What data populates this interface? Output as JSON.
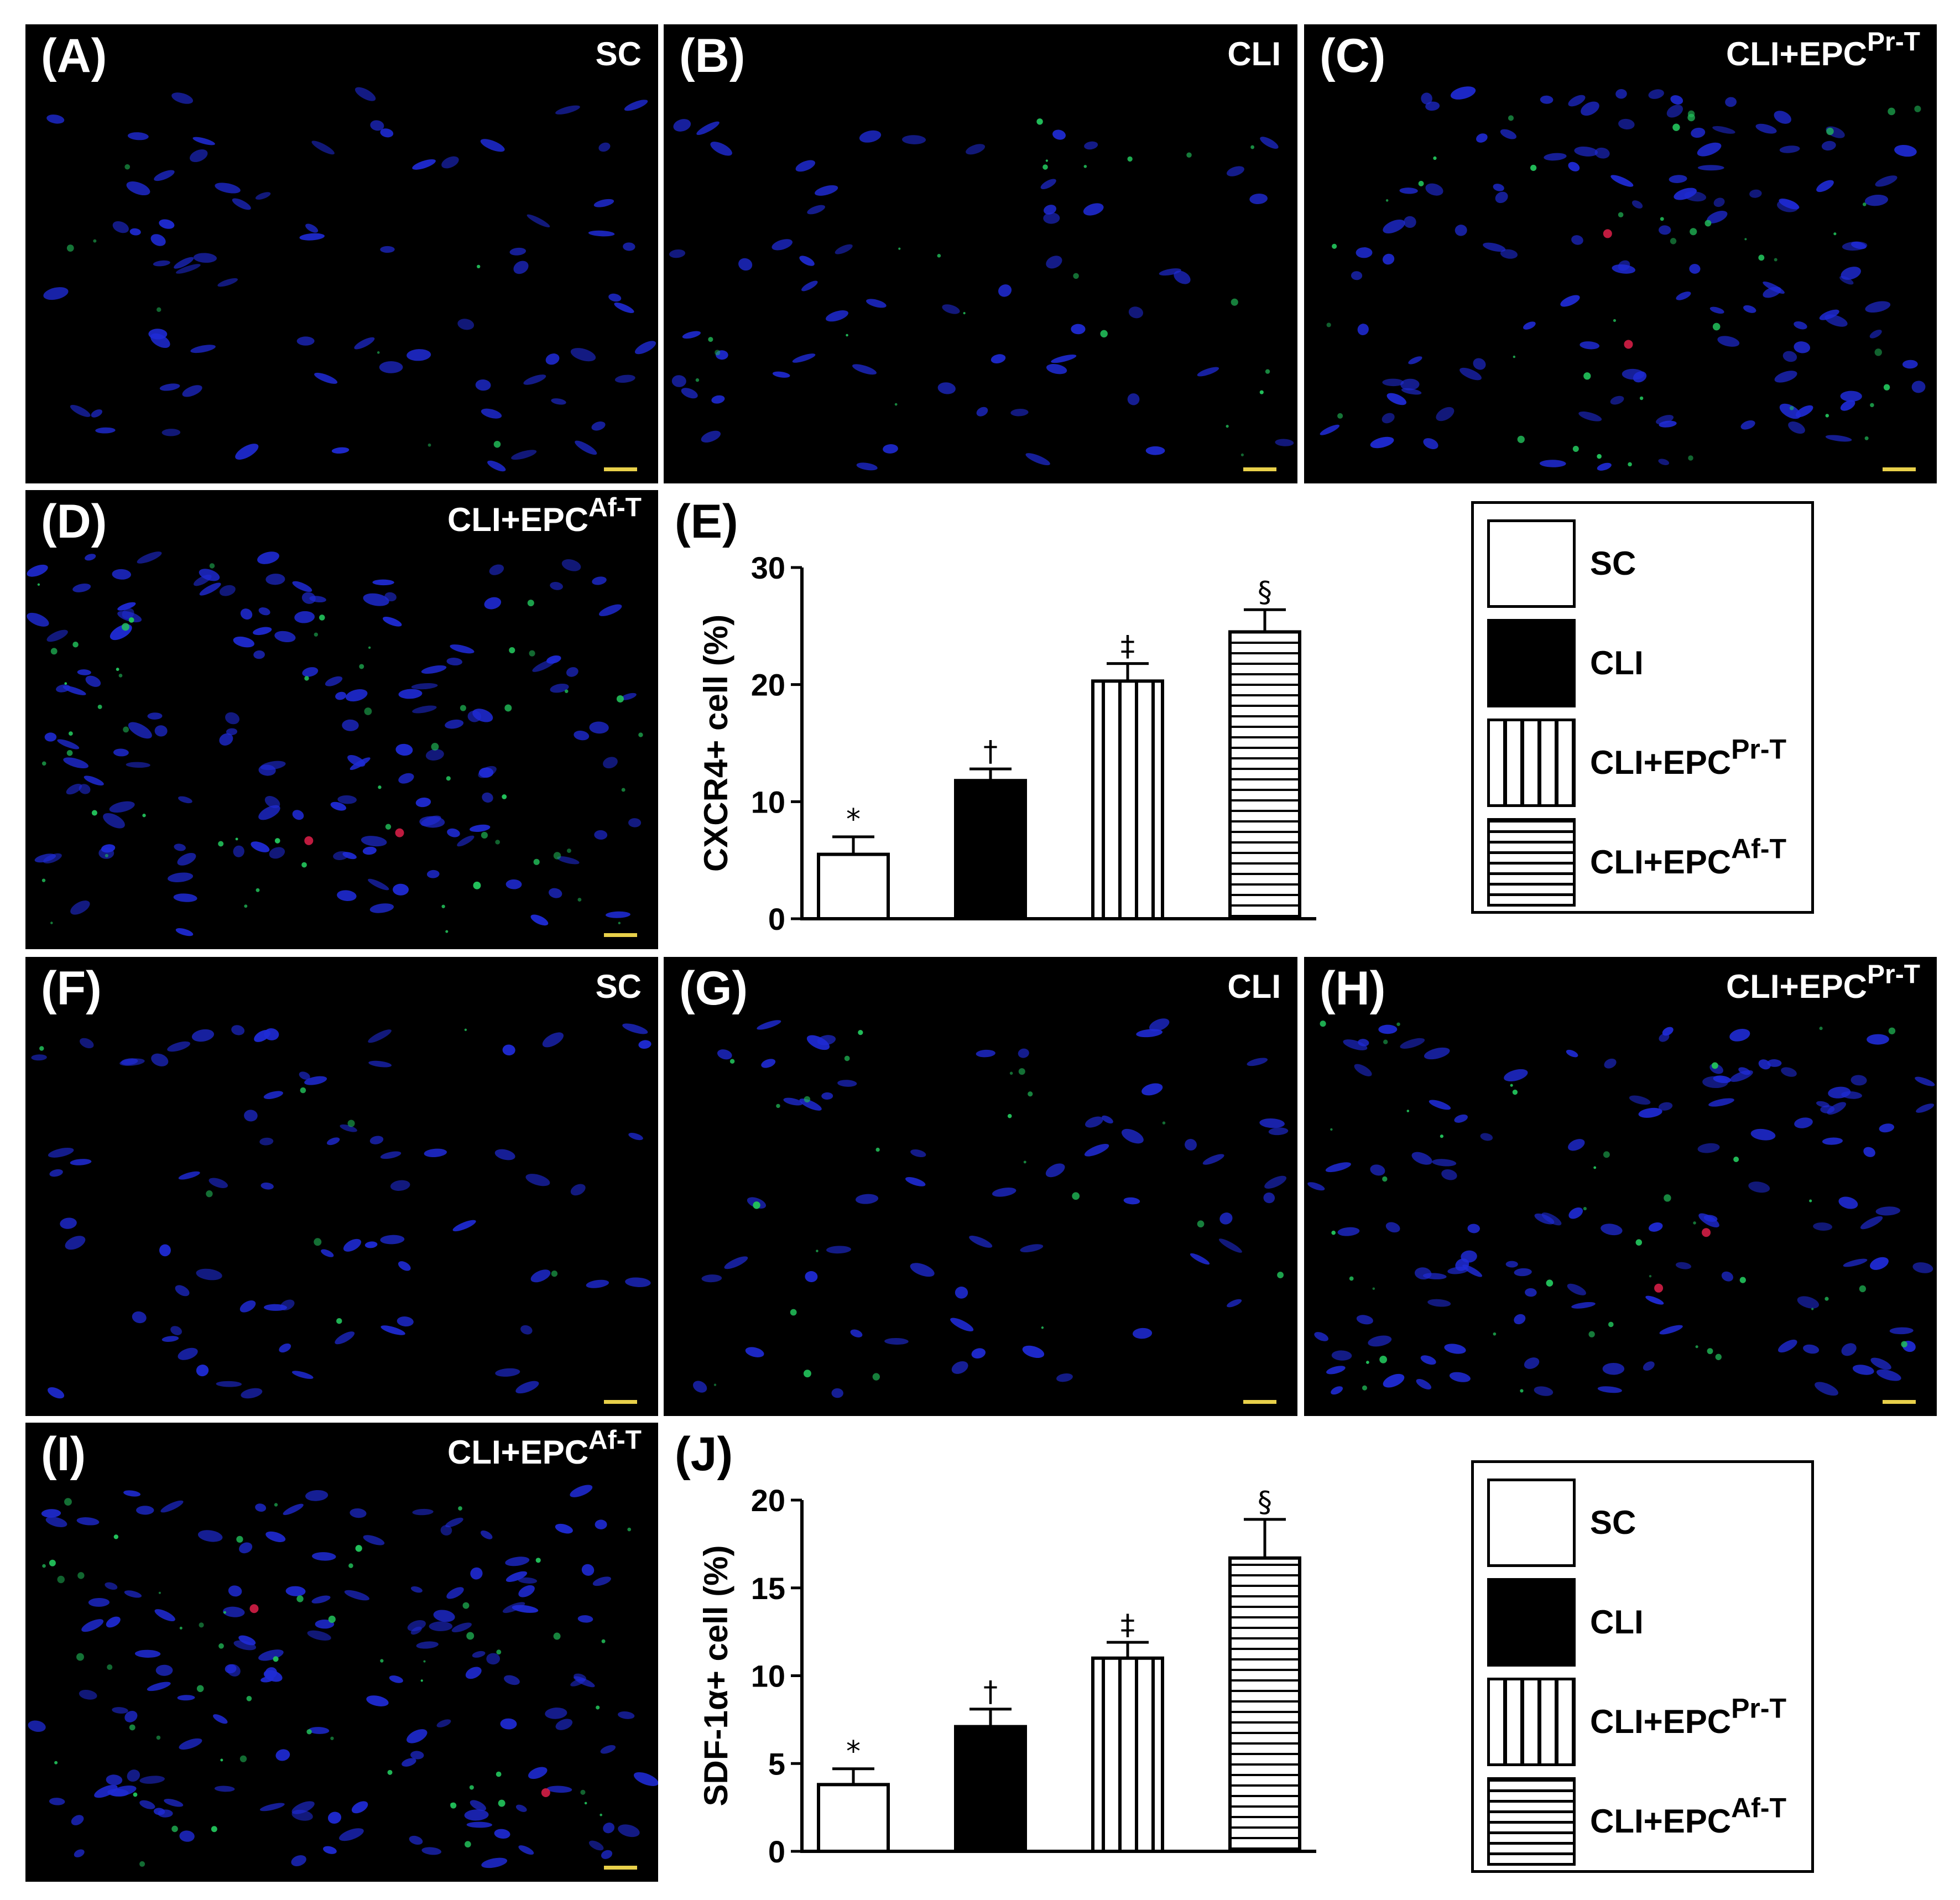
{
  "panels": [
    {
      "id": "A",
      "label": "(A)",
      "group": {
        "base": "SC",
        "sup": ""
      },
      "stain": "sparse"
    },
    {
      "id": "B",
      "label": "(B)",
      "group": {
        "base": "CLI",
        "sup": ""
      },
      "stain": "light"
    },
    {
      "id": "C",
      "label": "(C)",
      "group": {
        "base": "CLI+EPC",
        "sup": "Pr-T"
      },
      "stain": "medium"
    },
    {
      "id": "D",
      "label": "(D)",
      "group": {
        "base": "CLI+EPC",
        "sup": "Af-T"
      },
      "stain": "dense"
    },
    {
      "id": "F",
      "label": "(F)",
      "group": {
        "base": "SC",
        "sup": ""
      },
      "stain": "sparse"
    },
    {
      "id": "G",
      "label": "(G)",
      "group": {
        "base": "CLI",
        "sup": ""
      },
      "stain": "light"
    },
    {
      "id": "H",
      "label": "(H)",
      "group": {
        "base": "CLI+EPC",
        "sup": "Pr-T"
      },
      "stain": "medium"
    },
    {
      "id": "I",
      "label": "(I)",
      "group": {
        "base": "CLI+EPC",
        "sup": "Af-T"
      },
      "stain": "dense"
    }
  ],
  "legend": [
    {
      "base": "SC",
      "sup": "",
      "pattern": "white"
    },
    {
      "base": "CLI",
      "sup": "",
      "pattern": "black"
    },
    {
      "base": "CLI+EPC",
      "sup": "Pr-T",
      "pattern": "vertical"
    },
    {
      "base": "CLI+EPC",
      "sup": "Af-T",
      "pattern": "horizontal"
    }
  ],
  "colors": {
    "nuclei": "#1f2bd6",
    "marker": "#22c05a",
    "red": "#e0204a",
    "scalebar": "#e8d04a"
  },
  "chart_data": [
    {
      "panel_label": "(E)",
      "type": "bar",
      "categories": [
        "SC",
        "CLI",
        "CLI+EPCPr-T",
        "CLI+EPCAf-T"
      ],
      "values": [
        5.5,
        11.8,
        20.3,
        24.5
      ],
      "errors": [
        1.5,
        1.0,
        1.5,
        1.9
      ],
      "significance": [
        "*",
        "†",
        "‡",
        "§"
      ],
      "patterns": [
        "white",
        "black",
        "vertical",
        "horizontal"
      ],
      "ylabel": "CXCR4+ cell (%)",
      "ylim": [
        0,
        30
      ],
      "yticks": [
        0,
        10,
        20,
        30
      ]
    },
    {
      "panel_label": "(J)",
      "type": "bar",
      "categories": [
        "SC",
        "CLI",
        "CLI+EPCPr-T",
        "CLI+EPCAf-T"
      ],
      "values": [
        3.8,
        7.1,
        11.0,
        16.7
      ],
      "errors": [
        0.9,
        1.0,
        0.9,
        2.2
      ],
      "significance": [
        "*",
        "†",
        "‡",
        "§"
      ],
      "patterns": [
        "white",
        "black",
        "vertical",
        "horizontal"
      ],
      "ylabel": "SDF-1α+ cell (%)",
      "ylim": [
        0,
        20
      ],
      "yticks": [
        0,
        5,
        10,
        15,
        20
      ]
    }
  ]
}
